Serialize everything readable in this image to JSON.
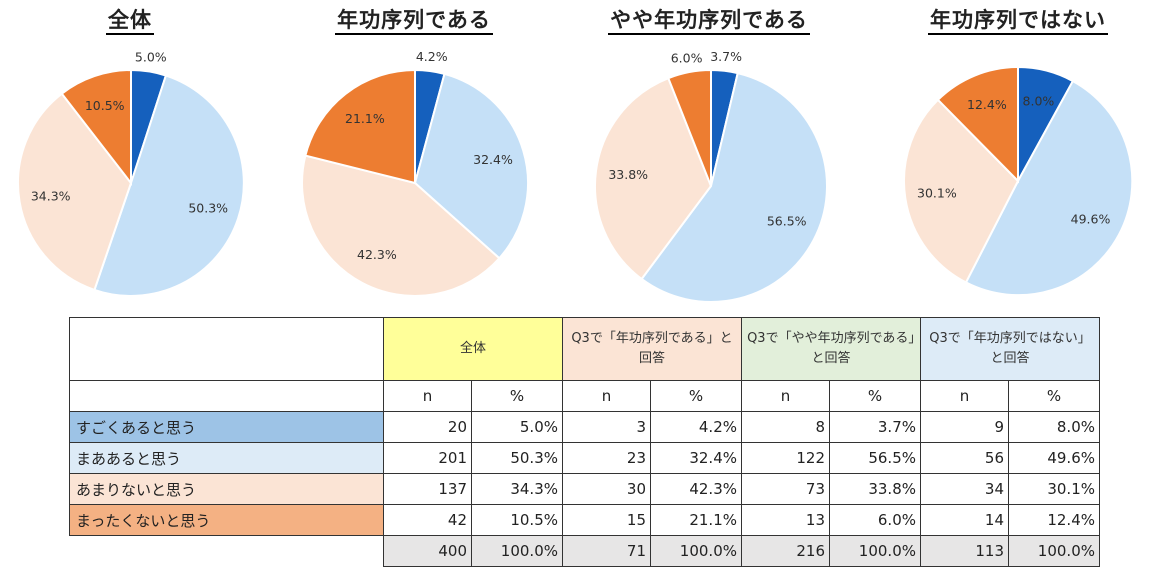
{
  "colors": {
    "segment_1": "#1560bd",
    "segment_2": "#c5e0f7",
    "segment_3": "#fbe4d5",
    "segment_4": "#ed7d31",
    "header_total": "#ffff99",
    "header_yes": "#fbe4d5",
    "header_somewhat": "#e2efda",
    "header_no": "#ddebf7",
    "label_1": "#9dc3e6",
    "label_2": "#ddebf7",
    "label_3": "#fbe4d5",
    "label_4": "#f4b183",
    "total_row": "#e7e6e6"
  },
  "chart_data": [
    {
      "type": "pie",
      "title": "全体",
      "categories": [
        "すごくあると思う",
        "まああると思う",
        "あまりないと思う",
        "まったくないと思う"
      ],
      "values": [
        5.0,
        50.3,
        34.3,
        10.5
      ],
      "labels": [
        "5.0%",
        "50.3%",
        "34.3%",
        "10.5%"
      ]
    },
    {
      "type": "pie",
      "title": "年功序列である",
      "categories": [
        "すごくあると思う",
        "まああると思う",
        "あまりないと思う",
        "まったくないと思う"
      ],
      "values": [
        4.2,
        32.4,
        42.3,
        21.1
      ],
      "labels": [
        "4.2%",
        "32.4%",
        "42.3%",
        "21.1%"
      ]
    },
    {
      "type": "pie",
      "title": "やや年功序列である",
      "categories": [
        "すごくあると思う",
        "まああると思う",
        "あまりないと思う",
        "まったくないと思う"
      ],
      "values": [
        3.7,
        56.5,
        33.8,
        6.0
      ],
      "labels": [
        "3.7%",
        "56.5%",
        "33.8%",
        "6.0%"
      ]
    },
    {
      "type": "pie",
      "title": "年功序列ではない",
      "categories": [
        "すごくあると思う",
        "まああると思う",
        "あまりないと思う",
        "まったくないと思う"
      ],
      "values": [
        8.0,
        49.6,
        30.1,
        12.4
      ],
      "labels": [
        "8.0%",
        "49.6%",
        "30.1%",
        "12.4%"
      ]
    },
    {
      "type": "table",
      "groups": [
        "全体",
        "Q3で「年功序列である」と回答",
        "Q3で「やや年功序列である」と回答",
        "Q3で「年功序列ではない」と回答"
      ],
      "subheaders": [
        "n",
        "%"
      ],
      "rows": [
        {
          "label": "すごくあると思う",
          "cells": [
            "20",
            "5.0%",
            "3",
            "4.2%",
            "8",
            "3.7%",
            "9",
            "8.0%"
          ]
        },
        {
          "label": "まああると思う",
          "cells": [
            "201",
            "50.3%",
            "23",
            "32.4%",
            "122",
            "56.5%",
            "56",
            "49.6%"
          ]
        },
        {
          "label": "あまりないと思う",
          "cells": [
            "137",
            "34.3%",
            "30",
            "42.3%",
            "73",
            "33.8%",
            "34",
            "30.1%"
          ]
        },
        {
          "label": "まったくないと思う",
          "cells": [
            "42",
            "10.5%",
            "15",
            "21.1%",
            "13",
            "6.0%",
            "14",
            "12.4%"
          ]
        }
      ],
      "total": [
        "400",
        "100.0%",
        "71",
        "100.0%",
        "216",
        "100.0%",
        "113",
        "100.0%"
      ]
    }
  ]
}
